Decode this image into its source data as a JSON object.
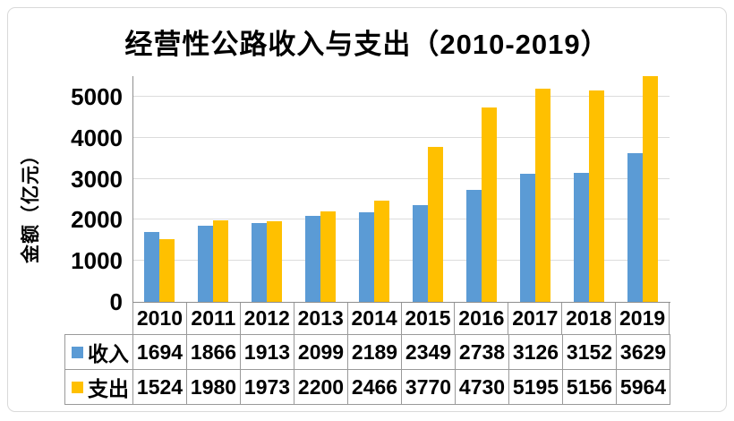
{
  "chart_data": {
    "type": "bar",
    "title": "经营性公路收入与支出（2010-2019）",
    "ylabel": "金额（亿元）",
    "xlabel": "",
    "categories": [
      "2010",
      "2011",
      "2012",
      "2013",
      "2014",
      "2015",
      "2016",
      "2017",
      "2018",
      "2019"
    ],
    "series": [
      {
        "name": "收入",
        "color": "#5B9BD5",
        "values": [
          1694,
          1866,
          1913,
          2099,
          2189,
          2349,
          2738,
          3126,
          3152,
          3629
        ]
      },
      {
        "name": "支出",
        "color": "#FFC000",
        "values": [
          1524,
          1980,
          1973,
          2200,
          2466,
          3770,
          4730,
          5195,
          5156,
          5964
        ]
      }
    ],
    "ylim": [
      0,
      5500
    ],
    "yticks": [
      0,
      1000,
      2000,
      3000,
      4000,
      5000
    ],
    "grid": true,
    "legend_position": "data-table-left",
    "data_table": true,
    "colors": {
      "gridline": "#dcdcdc",
      "axis": "#8e8e8e",
      "table_border": "#9a9a9a",
      "page_border": "#d9d9d9",
      "text": "#000000",
      "background": "#ffffff"
    }
  }
}
